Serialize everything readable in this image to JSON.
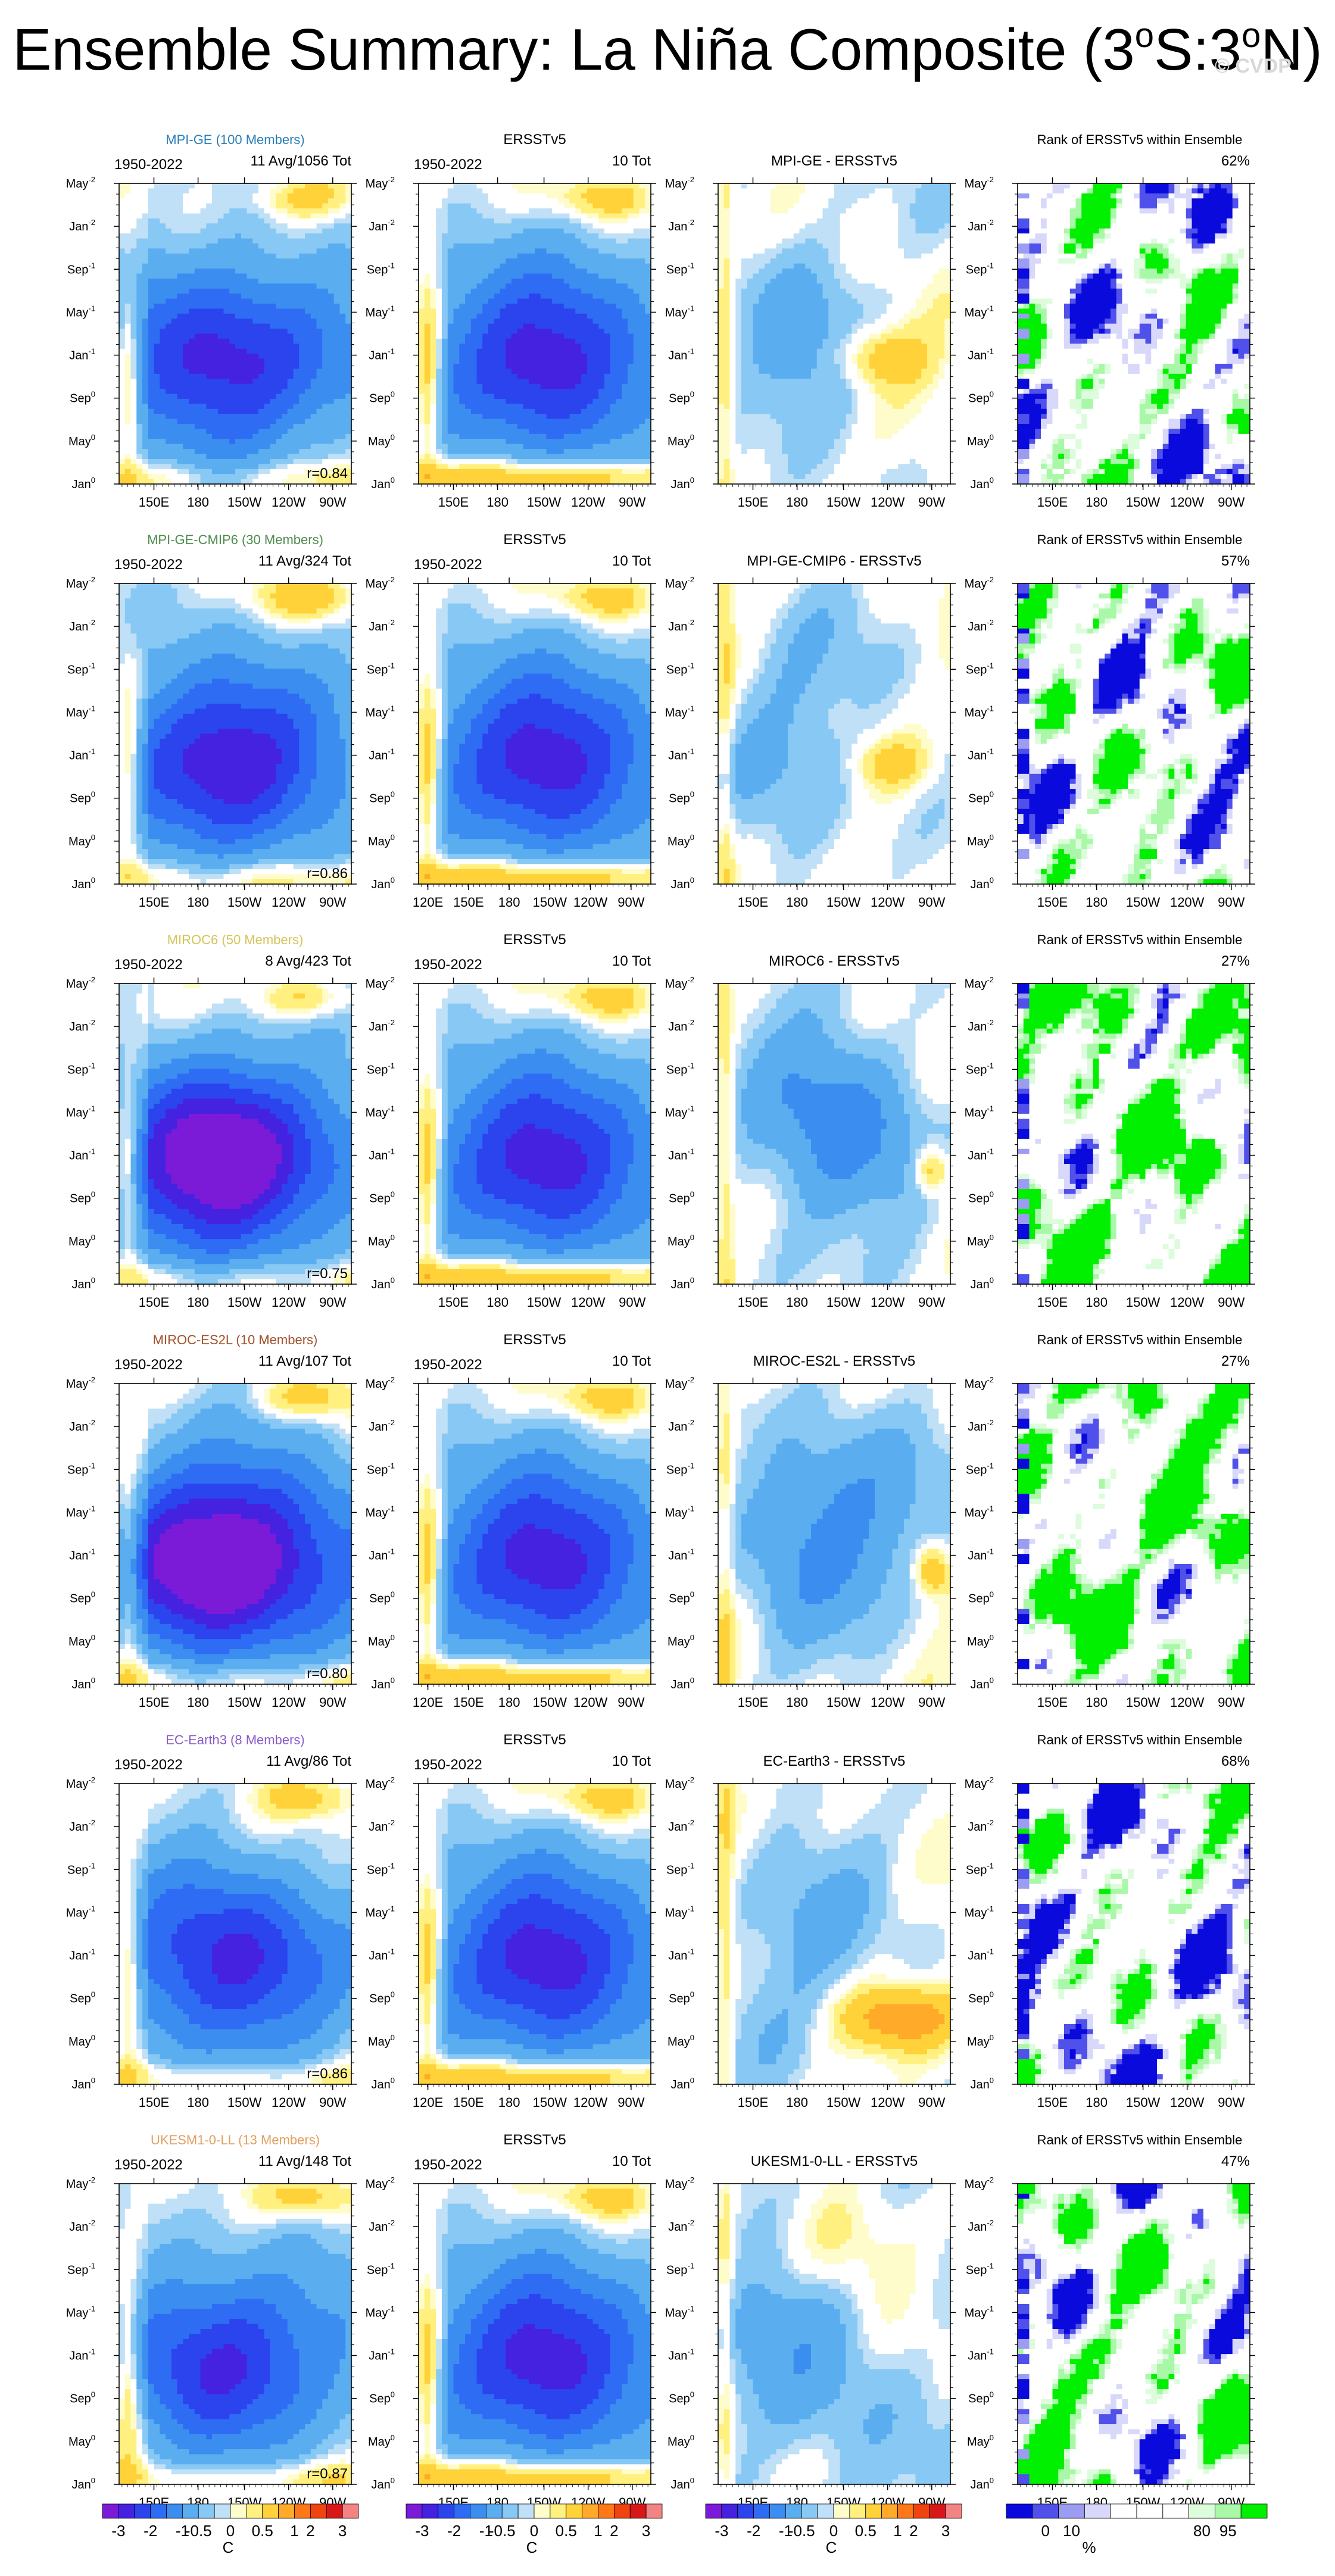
{
  "page": {
    "title_main": "Ensemble Summary: La Niña Composite (3",
    "title_deg1": "o",
    "title_mid": "S:3",
    "title_deg2": "o",
    "title_end": "N)",
    "watermark": "© CVDP"
  },
  "chart_data": {
    "type": "heatmap",
    "description_of_axes": "Hovmöller panels: x = longitude, y = month relative to event year",
    "x_ticks_default": [
      "150E",
      "180",
      "150W",
      "120W",
      "90W"
    ],
    "x_ticks_obs": [
      "120E",
      "150E",
      "180",
      "150W",
      "120W",
      "90W"
    ],
    "y_ticks": [
      {
        "base": "May",
        "sup": "-2"
      },
      {
        "base": "Jan",
        "sup": "-2"
      },
      {
        "base": "Sep",
        "sup": "-1"
      },
      {
        "base": "May",
        "sup": "-1"
      },
      {
        "base": "Jan",
        "sup": "-1"
      },
      {
        "base": "Sep",
        "sup": "0"
      },
      {
        "base": "May",
        "sup": "0"
      },
      {
        "base": "Jan",
        "sup": "0"
      }
    ],
    "anomaly_palette": [
      "#7b1bd8",
      "#4422e0",
      "#2b44ee",
      "#2f6cf4",
      "#3b8ef0",
      "#5aaef0",
      "#88c8f4",
      "#bfe0f6",
      "#fffccc",
      "#fff080",
      "#ffd23a",
      "#ffaa28",
      "#ff7818",
      "#f04410",
      "#d81818",
      "#f48484"
    ],
    "rank_palette": [
      "#0a0adc",
      "#5050ea",
      "#9c9cf2",
      "#d8d8fa",
      "#ffffff",
      "#ffffff",
      "#ffffff",
      "#dcfcdc",
      "#a8f8a8",
      "#00f000"
    ],
    "rows": [
      {
        "model": "MPI-GE (100 Members)",
        "model_color": "#2a7db8",
        "period": "1950-2022",
        "model_count": "11 Avg/1056 Tot",
        "obs_count": "10 Tot",
        "obs_title": "ERSSTv5",
        "diff_title": "MPI-GE - ERSSTv5",
        "rank_title": "Rank of ERSSTv5 within Ensemble",
        "rank_pct": "62%",
        "r": "r=0.84",
        "scale": 1.0,
        "diffmode": 0
      },
      {
        "model": "MPI-GE-CMIP6 (30 Members)",
        "model_color": "#4e8c4e",
        "period": "1950-2022",
        "model_count": "11 Avg/324 Tot",
        "obs_count": "10 Tot",
        "obs_title": "ERSSTv5",
        "diff_title": "MPI-GE-CMIP6 - ERSSTv5",
        "rank_title": "Rank of ERSSTv5 within Ensemble",
        "rank_pct": "57%",
        "r": "r=0.86",
        "scale": 1.05,
        "diffmode": 1
      },
      {
        "model": "MIROC6 (50 Members)",
        "model_color": "#d4c45a",
        "period": "1950-2022",
        "model_count": "8 Avg/423 Tot",
        "obs_count": "10 Tot",
        "obs_title": "ERSSTv5",
        "diff_title": "MIROC6 - ERSSTv5",
        "rank_title": "Rank of ERSSTv5 within Ensemble",
        "rank_pct": "27%",
        "r": "r=0.75",
        "scale": 1.35,
        "diffmode": 2
      },
      {
        "model": "MIROC-ES2L (10 Members)",
        "model_color": "#a0522d",
        "period": "1950-2022",
        "model_count": "11 Avg/107 Tot",
        "obs_count": "10 Tot",
        "obs_title": "ERSSTv5",
        "diff_title": "MIROC-ES2L - ERSSTv5",
        "rank_title": "Rank of ERSSTv5 within Ensemble",
        "rank_pct": "27%",
        "r": "r=0.80",
        "scale": 1.45,
        "diffmode": 2
      },
      {
        "model": "EC-Earth3 (8 Members)",
        "model_color": "#8a5cc8",
        "period": "1950-2022",
        "model_count": "11 Avg/86 Tot",
        "obs_count": "10 Tot",
        "obs_title": "ERSSTv5",
        "diff_title": "EC-Earth3 - ERSSTv5",
        "rank_title": "Rank of ERSSTv5 within Ensemble",
        "rank_pct": "68%",
        "r": "r=0.86",
        "scale": 0.95,
        "diffmode": 3
      },
      {
        "model": "UKESM1-0-LL (13 Members)",
        "model_color": "#e0a060",
        "period": "1950-2022",
        "model_count": "11 Avg/148 Tot",
        "obs_count": "10 Tot",
        "obs_title": "ERSSTv5",
        "diff_title": "UKESM1-0-LL - ERSSTv5",
        "rank_title": "Rank of ERSSTv5 within Ensemble",
        "rank_pct": "47%",
        "r": "r=0.87",
        "scale": 0.9,
        "diffmode": 4
      }
    ],
    "colorbar": {
      "anomaly_labels": [
        "-3",
        "-2",
        "-1",
        "-0.5",
        "0",
        "0.5",
        "1",
        "2",
        "3"
      ],
      "anomaly_unit": "C",
      "rank_labels": [
        "0",
        "10",
        "80",
        "95"
      ],
      "rank_unit": "%"
    }
  }
}
